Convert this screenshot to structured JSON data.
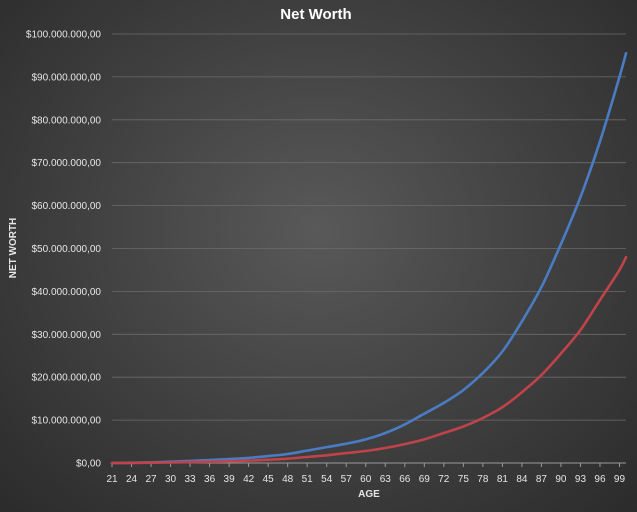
{
  "chart_data": {
    "type": "line",
    "title": "Net Worth",
    "xlabel": "AGE",
    "ylabel": "NET WORTH",
    "ylim": [
      0,
      100000000
    ],
    "xlim": [
      21,
      100
    ],
    "grid": true,
    "legend": "none",
    "y_ticks": [
      0,
      10000000,
      20000000,
      30000000,
      40000000,
      50000000,
      60000000,
      70000000,
      80000000,
      90000000,
      100000000
    ],
    "y_tick_labels": [
      "$0,00",
      "$10.000.000,00",
      "$20.000.000,00",
      "$30.000.000,00",
      "$40.000.000,00",
      "$50.000.000,00",
      "$60.000.000,00",
      "$70.000.000,00",
      "$80.000.000,00",
      "$90.000.000,00",
      "$100.000.000,00"
    ],
    "x_tick_labels": [
      "21",
      "24",
      "27",
      "30",
      "33",
      "36",
      "39",
      "42",
      "45",
      "48",
      "51",
      "54",
      "57",
      "60",
      "63",
      "66",
      "69",
      "72",
      "75",
      "78",
      "81",
      "84",
      "87",
      "90",
      "93",
      "96",
      "99"
    ],
    "series": [
      {
        "color": "#4a7cc4",
        "x": [
          21,
          24,
          27,
          30,
          33,
          36,
          39,
          42,
          45,
          48,
          51,
          54,
          57,
          60,
          63,
          66,
          69,
          72,
          75,
          78,
          81,
          84,
          87,
          90,
          93,
          96,
          99,
          100
        ],
        "values": [
          0,
          50000,
          150000,
          300000,
          500000,
          700000,
          900000,
          1200000,
          1600000,
          2100000,
          2900000,
          3700000,
          4500000,
          5500000,
          7000000,
          9000000,
          11500000,
          14000000,
          17000000,
          21000000,
          26000000,
          33000000,
          41000000,
          51000000,
          62000000,
          75000000,
          90000000,
          95500000
        ]
      },
      {
        "color": "#c0434a",
        "x": [
          21,
          24,
          27,
          30,
          33,
          36,
          39,
          42,
          45,
          48,
          51,
          54,
          57,
          60,
          63,
          66,
          69,
          72,
          75,
          78,
          81,
          84,
          87,
          90,
          93,
          96,
          99,
          100
        ],
        "values": [
          0,
          20000,
          60000,
          120000,
          200000,
          300000,
          400000,
          550000,
          750000,
          1000000,
          1400000,
          1800000,
          2300000,
          2800000,
          3500000,
          4400000,
          5500000,
          7000000,
          8500000,
          10500000,
          13000000,
          16500000,
          20500000,
          25500000,
          31000000,
          38000000,
          45000000,
          48000000
        ]
      }
    ]
  }
}
